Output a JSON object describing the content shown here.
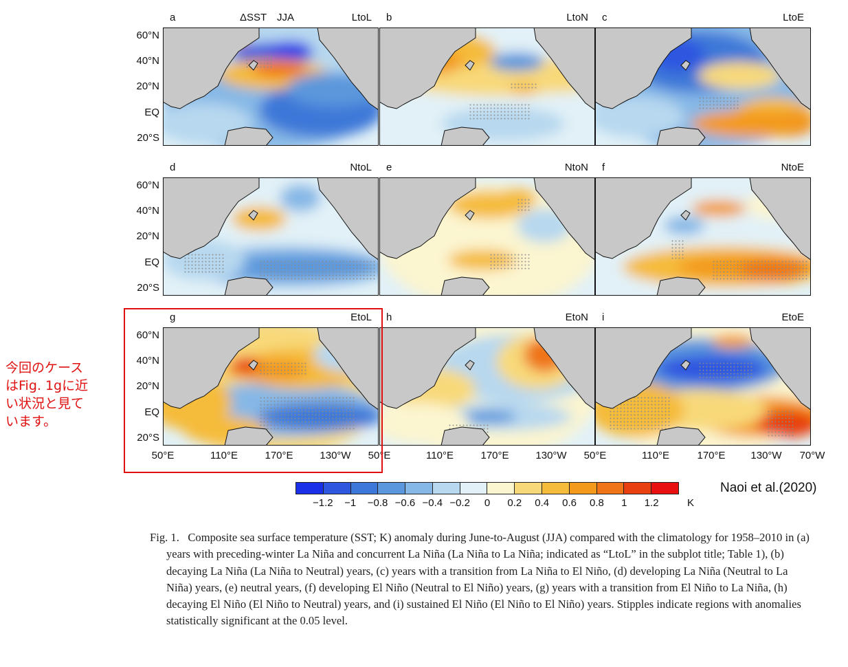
{
  "figure": {
    "header_var": "ΔSST",
    "header_season": "JJA",
    "panels": [
      {
        "letter": "a",
        "title": "LtoL"
      },
      {
        "letter": "b",
        "title": "LtoN"
      },
      {
        "letter": "c",
        "title": "LtoE"
      },
      {
        "letter": "d",
        "title": "NtoL"
      },
      {
        "letter": "e",
        "title": "NtoN"
      },
      {
        "letter": "f",
        "title": "NtoE"
      },
      {
        "letter": "g",
        "title": "EtoL"
      },
      {
        "letter": "h",
        "title": "EtoN"
      },
      {
        "letter": "i",
        "title": "EtoE"
      }
    ],
    "lat_ticks": [
      "60°N",
      "40°N",
      "20°N",
      "EQ",
      "20°S"
    ],
    "lon_ticks": [
      "50°E",
      "110°E",
      "170°E",
      "130°W",
      "50°E",
      "110°E",
      "170°E",
      "130°W",
      "50°E",
      "110°E",
      "170°E",
      "130°W",
      "70°W"
    ]
  },
  "colorbar": {
    "colors": [
      "#1a2fe8",
      "#2e57e0",
      "#3d78d8",
      "#5b97dc",
      "#86b8e6",
      "#b7d8ef",
      "#e2f1f7",
      "#fbf5d0",
      "#f8d97a",
      "#f5bb3a",
      "#f39a1c",
      "#ef7518",
      "#e84010",
      "#e81010"
    ],
    "labels": [
      "−1.2",
      "−1",
      "−0.8",
      "−0.6",
      "−0.4",
      "−0.2",
      "0",
      "0.2",
      "0.4",
      "0.6",
      "0.8",
      "1",
      "1.2"
    ],
    "unit": "K"
  },
  "credit": "Naoi et al.(2020)",
  "note": {
    "lines": [
      "今回のケース",
      "はFig. 1gに近",
      "い状況と見て",
      "います。"
    ]
  },
  "caption": {
    "number": "Fig. 1.",
    "text": "Composite sea surface temperature (SST; K) anomaly during June-to-August (JJA) compared with the climatology for 1958–2010 in (a) years with preceding-winter La Niña and concurrent La Niña (La Niña to La Niña; indicated as “LtoL” in the subplot title; Table 1), (b) decaying La Niña (La Niña to Neutral) years, (c) years with a transition from La Niña to El Niño, (d) developing La Niña (Neutral to La Niña) years, (e) neutral years, (f) developing El Niño (Neutral to El Niño) years, (g) years with a transition from El Niño to La Niña, (h) decaying El Niño (El Niño to Neutral) years, and (i) sustained El Niño (El Niño to El Niño) years. Stipples indicate regions with anomalies statistically significant at the 0.05 level."
  }
}
